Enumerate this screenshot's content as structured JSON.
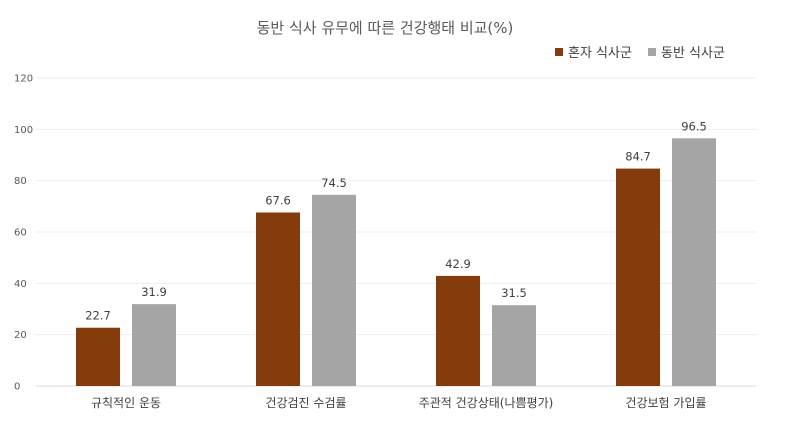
{
  "chart_data": {
    "type": "bar",
    "title": "동반 식사 유무에 따른 건강행태 비교(%)",
    "categories": [
      "규칙적인 운동",
      "건강검진 수검률",
      "주관적 건강상태(나쁨평가)",
      "건강보험 가입률"
    ],
    "series": [
      {
        "name": "혼자 식사군",
        "values": [
          22.7,
          67.6,
          42.9,
          84.7
        ],
        "color": "#843C0C"
      },
      {
        "name": "동반 식사군",
        "values": [
          31.9,
          74.5,
          31.5,
          96.5
        ],
        "color": "#A5A5A5"
      }
    ],
    "ylim": [
      0,
      120
    ],
    "yticks": [
      0,
      20,
      40,
      60,
      80,
      100,
      120
    ],
    "ytick_labels": [
      "0",
      "20",
      "40",
      "60",
      "80",
      "100",
      "120"
    ],
    "value_labels": [
      [
        "22.7",
        "67.6",
        "42.9",
        "84.7"
      ],
      [
        "31.9",
        "74.5",
        "31.5",
        "96.5"
      ]
    ],
    "grid": true,
    "legend": "top-right",
    "xlabel": "",
    "ylabel": ""
  }
}
